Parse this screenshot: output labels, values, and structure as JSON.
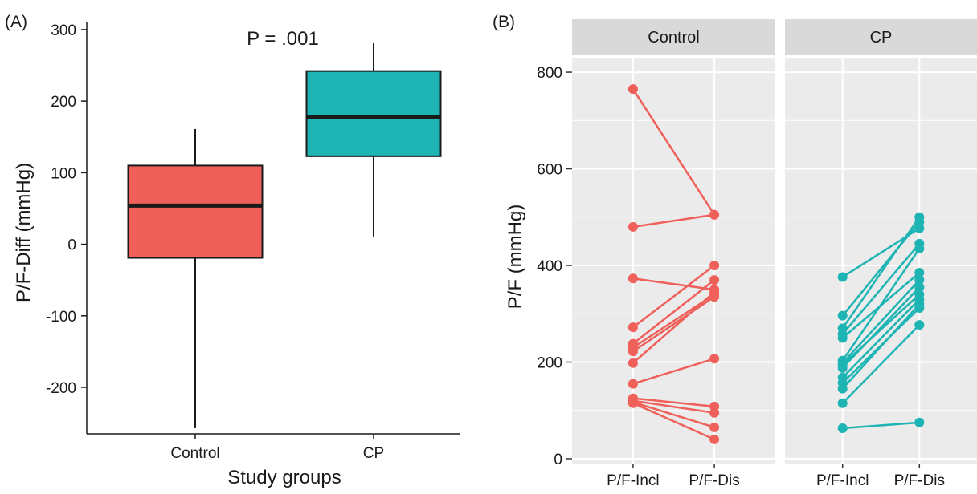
{
  "chart_data": [
    {
      "type": "box",
      "panel_label": "(A)",
      "xlabel": "Study groups",
      "ylabel": "P/F-Diff (mmHg)",
      "ylim": [
        -265,
        310
      ],
      "yticks": [
        -200,
        -100,
        0,
        100,
        200,
        300
      ],
      "categories": [
        "Control",
        "CP"
      ],
      "annotation": "P = .001",
      "grid": false,
      "boxes": [
        {
          "category": "Control",
          "color": "#F0605B",
          "whisker_low": -257,
          "q1": -19,
          "median": 54,
          "q3": 110,
          "whisker_high": 161
        },
        {
          "category": "CP",
          "color": "#1EB4B4",
          "whisker_low": 11,
          "q1": 123,
          "median": 178,
          "q3": 242,
          "whisker_high": 281
        }
      ]
    },
    {
      "type": "line",
      "panel_label": "(B)",
      "ylabel": "P/F (mmHg)",
      "ylim": [
        -10,
        830
      ],
      "yticks": [
        0,
        200,
        400,
        600,
        800
      ],
      "categories": [
        "P/F-Incl",
        "P/F-Dis"
      ],
      "grid": true,
      "background": "#EBEBEB",
      "facets": [
        {
          "name": "Control",
          "color": "#F0605B",
          "pairs": [
            [
              765,
              505
            ],
            [
              480,
              505
            ],
            [
              373,
              350
            ],
            [
              272,
              400
            ],
            [
              238,
              370
            ],
            [
              230,
              340
            ],
            [
              222,
              335
            ],
            [
              198,
              345
            ],
            [
              155,
              207
            ],
            [
              125,
              108
            ],
            [
              120,
              95
            ],
            [
              117,
              65
            ],
            [
              115,
              40
            ]
          ]
        },
        {
          "name": "CP",
          "color": "#1EB4B4",
          "pairs": [
            [
              376,
              477
            ],
            [
              296,
              490
            ],
            [
              270,
              500
            ],
            [
              258,
              445
            ],
            [
              250,
              385
            ],
            [
              203,
              435
            ],
            [
              198,
              370
            ],
            [
              195,
              340
            ],
            [
              188,
              355
            ],
            [
              168,
              330
            ],
            [
              157,
              312
            ],
            [
              145,
              320
            ],
            [
              115,
              277
            ],
            [
              63,
              75
            ]
          ]
        }
      ]
    }
  ]
}
